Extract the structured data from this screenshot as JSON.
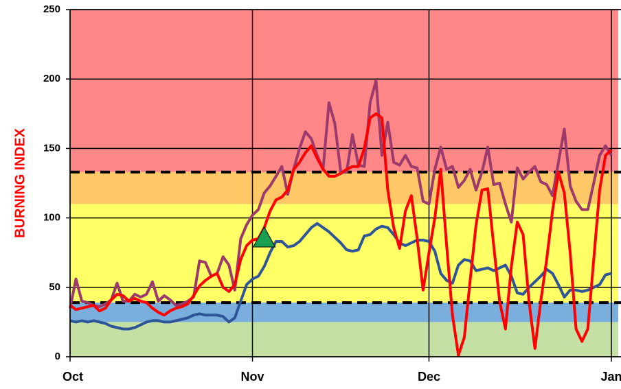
{
  "chart_data": {
    "type": "line",
    "y_label": "BURNING INDEX",
    "xlim": [
      0,
      92
    ],
    "xticks": [
      {
        "value": 0,
        "label": "Oct"
      },
      {
        "value": 31,
        "label": "Nov"
      },
      {
        "value": 61,
        "label": "Dec"
      },
      {
        "value": 92,
        "label": "Jan"
      }
    ],
    "ylim": [
      0,
      250
    ],
    "yticks": [
      0,
      50,
      100,
      150,
      200,
      250
    ],
    "grid": true,
    "bands": [
      {
        "from": 0,
        "to": 25,
        "color": "#c4e0a4"
      },
      {
        "from": 25,
        "to": 39,
        "color": "#7aaedc"
      },
      {
        "from": 39,
        "to": 110,
        "color": "#ffff66"
      },
      {
        "from": 110,
        "to": 133,
        "color": "#ffc866"
      },
      {
        "from": 133,
        "to": 250,
        "color": "#ff8787"
      }
    ],
    "reference_lines": [
      39,
      133
    ],
    "marker": {
      "x": 33,
      "y": 85,
      "color": "#1a9e50"
    },
    "x": [
      0,
      1,
      2,
      3,
      4,
      5,
      6,
      7,
      8,
      9,
      10,
      11,
      12,
      13,
      14,
      15,
      16,
      17,
      18,
      19,
      20,
      21,
      22,
      23,
      24,
      25,
      26,
      27,
      28,
      29,
      30,
      31,
      32,
      33,
      34,
      35,
      36,
      37,
      38,
      39,
      40,
      41,
      42,
      43,
      44,
      45,
      46,
      47,
      48,
      49,
      50,
      51,
      52,
      53,
      54,
      55,
      56,
      57,
      58,
      59,
      60,
      61,
      62,
      63,
      64,
      65,
      66,
      67,
      68,
      69,
      70,
      71,
      72,
      73,
      74,
      75,
      76,
      77,
      78,
      79,
      80,
      81,
      82,
      83,
      84,
      85,
      86,
      87,
      88,
      89,
      90,
      91,
      92
    ],
    "series": [
      {
        "color": "#9b3a6b",
        "values": [
          35,
          56,
          40,
          39,
          37,
          36,
          38,
          41,
          53,
          40,
          40,
          45,
          43,
          45,
          54,
          40,
          44,
          41,
          37,
          38,
          40,
          43,
          69,
          68,
          58,
          60,
          72,
          66,
          48,
          85,
          95,
          102,
          106,
          118,
          123,
          130,
          137,
          117,
          135,
          150,
          162,
          157,
          145,
          135,
          183,
          168,
          133,
          133,
          160,
          138,
          137,
          183,
          199,
          145,
          169,
          140,
          138,
          145,
          137,
          136,
          112,
          110,
          135,
          151,
          135,
          137,
          122,
          127,
          135,
          120,
          133,
          151,
          124,
          125,
          110,
          97,
          136,
          128,
          133,
          137,
          126,
          124,
          116,
          140,
          164,
          123,
          112,
          106,
          106,
          125,
          145,
          152,
          145
        ]
      },
      {
        "color": "#2e5597",
        "values": [
          26,
          25,
          26,
          25,
          26,
          25,
          24,
          22,
          21,
          20,
          20,
          21,
          23,
          25,
          26,
          26,
          25,
          25,
          26,
          27,
          28,
          30,
          31,
          30,
          30,
          30,
          29,
          25,
          28,
          40,
          52,
          56,
          58,
          65,
          75,
          83,
          83,
          79,
          80,
          83,
          88,
          93,
          96,
          93,
          90,
          86,
          82,
          77,
          76,
          77,
          87,
          88,
          92,
          94,
          93,
          88,
          82,
          80,
          82,
          84,
          84,
          83,
          76,
          60,
          55,
          53,
          66,
          70,
          69,
          62,
          63,
          64,
          62,
          64,
          66,
          58,
          46,
          45,
          50,
          54,
          58,
          63,
          60,
          52,
          43,
          48,
          48,
          47,
          48,
          50,
          52,
          59,
          60
        ]
      },
      {
        "color": "#ff0000",
        "values": [
          37,
          34,
          35,
          36,
          37,
          33,
          35,
          41,
          45,
          44,
          40,
          42,
          40,
          39,
          35,
          32,
          30,
          33,
          35,
          36,
          38,
          44,
          51,
          55,
          58,
          60,
          50,
          47,
          52,
          70,
          80,
          84,
          85,
          93,
          105,
          113,
          115,
          120,
          135,
          140,
          147,
          152,
          143,
          135,
          130,
          130,
          132,
          135,
          137,
          137,
          150,
          172,
          175,
          172,
          120,
          93,
          78,
          105,
          116,
          85,
          48,
          75,
          100,
          135,
          80,
          30,
          1,
          14,
          55,
          95,
          120,
          121,
          80,
          40,
          20,
          65,
          97,
          88,
          40,
          6,
          40,
          70,
          105,
          133,
          118,
          75,
          20,
          11,
          20,
          70,
          120,
          145,
          149
        ]
      }
    ]
  }
}
